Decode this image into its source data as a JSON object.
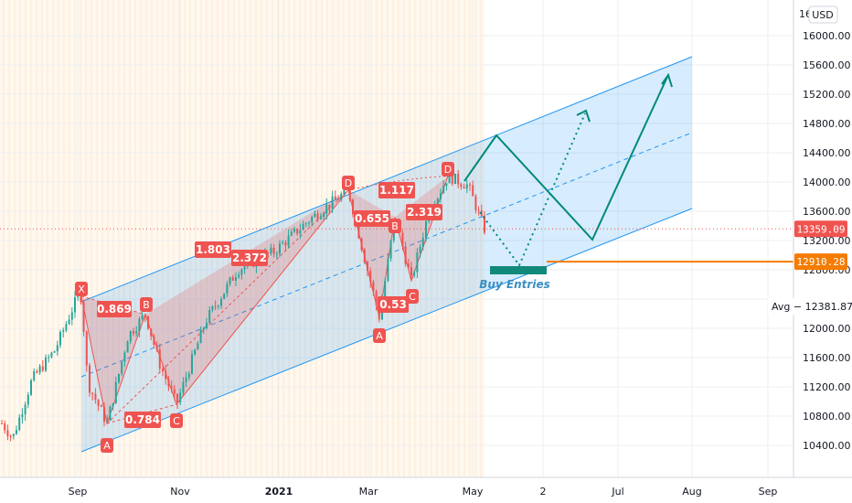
{
  "chart_data": {
    "type": "candlestick",
    "currency": "USD",
    "y_ticks": [
      10400,
      10800,
      11200,
      11600,
      12000,
      12400,
      12800,
      13200,
      13600,
      14000,
      14400,
      14800,
      15200,
      15600,
      16000
    ],
    "y_tick_labels": [
      "10400.00",
      "10800.00",
      "11200.00",
      "11600.00",
      "12000.00",
      "",
      "12800.00",
      "13200.00",
      "13600.00",
      "14000.00",
      "14400.00",
      "14800.00",
      "15200.00",
      "15600.00",
      "16000.00"
    ],
    "top_tick_label": "16",
    "x_ticks": [
      {
        "label": "Sep",
        "bold": false
      },
      {
        "label": "Nov",
        "bold": false
      },
      {
        "label": "2021",
        "bold": true
      },
      {
        "label": "Mar",
        "bold": false
      },
      {
        "label": "May",
        "bold": false
      },
      {
        "label": "2",
        "bold": false
      },
      {
        "label": "Jul",
        "bold": false
      },
      {
        "label": "Aug",
        "bold": false
      },
      {
        "label": "Sep",
        "bold": false
      }
    ],
    "price_tags": [
      {
        "value": 13359.09,
        "label": "13359.09",
        "color": "#ef5350"
      },
      {
        "value": 12910.28,
        "label": "12910.28",
        "color": "#f57c00"
      }
    ],
    "avg_label": "Avg − 12381.87",
    "patterns": [
      {
        "points": [
          {
            "name": "X",
            "value": 12440
          },
          {
            "name": "A",
            "value": 10700
          },
          {
            "name": "B",
            "value": 12190
          },
          {
            "name": "C",
            "value": 10960
          },
          {
            "name": "D",
            "value": 13890
          }
        ],
        "ratios": [
          "0.869",
          "0.784",
          "1.803",
          "2.372"
        ]
      },
      {
        "points": [
          {
            "name": "A",
            "value": 12150
          },
          {
            "name": "B",
            "value": 13520
          },
          {
            "name": "C",
            "value": 12650
          },
          {
            "name": "D",
            "value": 14080
          }
        ],
        "ratios": [
          "0.655",
          "0.53",
          "1.117",
          "2.319"
        ]
      }
    ],
    "annotation": "Buy Entries",
    "colors": {
      "up": "#26a69a",
      "down": "#ef5350",
      "channel": "#2196f3",
      "pattern": "#ef5350",
      "projection": "#00897b",
      "entry": "#f57c00"
    }
  }
}
